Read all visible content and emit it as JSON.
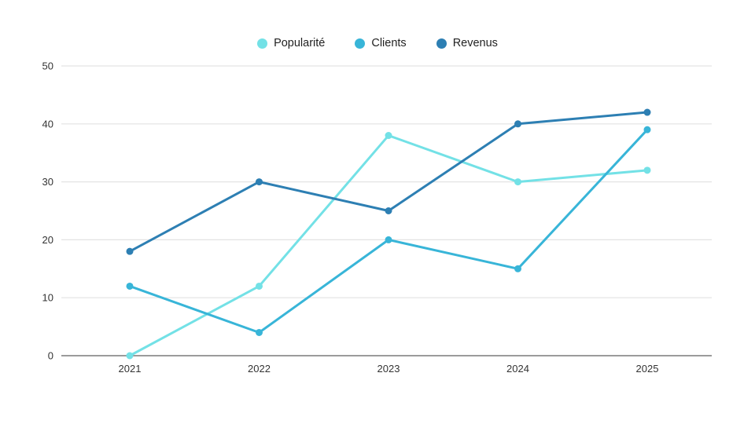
{
  "chart_data": {
    "type": "line",
    "categories": [
      "2021",
      "2022",
      "2023",
      "2024",
      "2025"
    ],
    "series": [
      {
        "name": "Popularité",
        "color": "#73e1e6",
        "values": [
          0,
          12,
          38,
          30,
          32
        ]
      },
      {
        "name": "Clients",
        "color": "#38b5d8",
        "values": [
          12,
          4,
          20,
          15,
          39
        ]
      },
      {
        "name": "Revenus",
        "color": "#2d7fb3",
        "values": [
          18,
          30,
          25,
          40,
          42
        ]
      }
    ],
    "yticks": [
      0,
      10,
      20,
      30,
      40,
      50
    ],
    "ylim": [
      0,
      50
    ],
    "grid": true,
    "legend_position": "top"
  },
  "colors": {
    "background": "#ffffff",
    "gridline": "#e3e3e3",
    "baseline": "#9b9b9b",
    "tick_text": "#333333",
    "legend_text": "#222222"
  }
}
